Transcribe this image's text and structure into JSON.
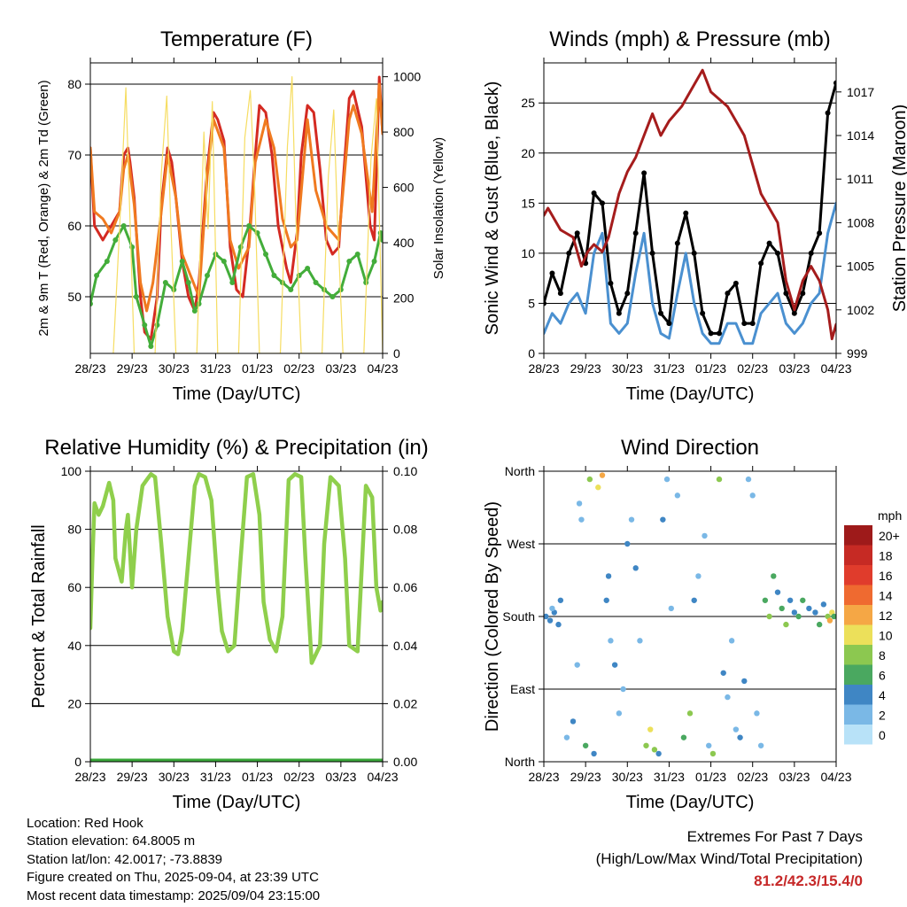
{
  "panels": [
    {
      "id": "temperature",
      "title": "Temperature (F)",
      "xlabel": "Time (Day/UTC)",
      "ylabel_left": "2m & 9m T (Red, Orange) & 2m Td (Green)",
      "ylabel_right": "Solar Insolation (Yellow)"
    },
    {
      "id": "winds",
      "title": "Winds (mph) & Pressure (mb)",
      "xlabel": "Time (Day/UTC)",
      "ylabel_left": "Sonic Wind & Gust (Blue, Black)",
      "ylabel_right": "Station Pressure (Maroon)"
    },
    {
      "id": "humidity",
      "title": "Relative Humidity (%) & Precipitation (in)",
      "xlabel": "Time (Day/UTC)",
      "ylabel_left": "Percent & Total Rainfall",
      "ylabel_right": ""
    },
    {
      "id": "direction",
      "title": "Wind Direction",
      "xlabel": "Time (Day/UTC)",
      "ylabel_left": "Direction (Colored By Speed)",
      "ylabel_right": ""
    }
  ],
  "colorbar": {
    "unit": "mph",
    "labels": [
      "20+",
      "18",
      "16",
      "14",
      "12",
      "10",
      "8",
      "6",
      "4",
      "2",
      "0"
    ],
    "colors": [
      "#9e1a1a",
      "#c62a24",
      "#e03c2c",
      "#ef6a30",
      "#f5a745",
      "#ece05a",
      "#8cc850",
      "#4aa860",
      "#3f86c4",
      "#7ab8e6",
      "#b8e2f8"
    ]
  },
  "info": {
    "location": "Location: Red Hook",
    "elevation": "Station elevation: 64.8005 m",
    "latlon": "Station lat/lon: 42.0017; -73.8839",
    "created": "Figure created on Thu, 2025-09-04, at 23:39 UTC",
    "latest": "Most recent data timestamp: 2025/09/04 23:15:00"
  },
  "extremes": {
    "line1": "Extremes For Past 7 Days",
    "line2": "(High/Low/Max Wind/Total Precipitation)",
    "values": "81.2/42.3/15.4/0"
  },
  "chart_data": [
    {
      "type": "line",
      "title": "Temperature (F)",
      "xlabel": "Time (Day/UTC)",
      "ylabel": "2m & 9m T (Red, Orange) & 2m Td (Green)",
      "y2label": "Solar Insolation (Yellow)",
      "x_ticks": [
        "28/23",
        "29/23",
        "30/23",
        "31/23",
        "01/23",
        "02/23",
        "03/23",
        "04/23"
      ],
      "xlim": [
        0,
        7
      ],
      "ylim": [
        42,
        83
      ],
      "y_ticks": [
        50,
        60,
        70,
        80
      ],
      "y2lim": [
        0,
        1050
      ],
      "y2_ticks": [
        0,
        200,
        400,
        600,
        800,
        1000
      ],
      "grid": true,
      "series": [
        {
          "name": "2m T",
          "color": "#d42a22",
          "axis": "left",
          "x": [
            0,
            0.1,
            0.3,
            0.5,
            0.7,
            0.8,
            0.9,
            0.95,
            1.05,
            1.2,
            1.3,
            1.45,
            1.6,
            1.7,
            1.85,
            1.95,
            2.05,
            2.2,
            2.35,
            2.5,
            2.6,
            2.8,
            2.95,
            3.05,
            3.2,
            3.35,
            3.5,
            3.65,
            3.8,
            3.95,
            4.05,
            4.2,
            4.35,
            4.5,
            4.7,
            4.8,
            4.95,
            5.05,
            5.2,
            5.35,
            5.5,
            5.65,
            5.8,
            5.95,
            6.05,
            6.2,
            6.3,
            6.5,
            6.7,
            6.8,
            6.92,
            7.0
          ],
          "y": [
            71,
            60,
            58,
            60,
            62,
            70,
            71,
            69,
            64,
            50,
            45,
            44,
            50,
            63,
            71,
            69,
            64,
            55,
            50,
            48,
            52,
            68,
            76,
            75,
            72,
            57,
            51,
            50,
            58,
            70,
            77,
            76,
            70,
            60,
            54,
            52,
            59,
            70,
            77,
            76,
            68,
            58,
            56,
            57,
            66,
            78,
            79,
            74,
            60,
            58,
            81,
            73
          ]
        },
        {
          "name": "9m T",
          "color": "#f07a20",
          "axis": "left",
          "x": [
            0,
            0.1,
            0.3,
            0.5,
            0.7,
            0.8,
            0.9,
            1.05,
            1.2,
            1.35,
            1.5,
            1.7,
            1.85,
            2.05,
            2.2,
            2.4,
            2.6,
            2.8,
            2.95,
            3.2,
            3.35,
            3.55,
            3.8,
            3.95,
            4.2,
            4.4,
            4.6,
            4.8,
            4.95,
            5.2,
            5.4,
            5.65,
            5.95,
            6.2,
            6.3,
            6.5,
            6.75,
            6.92,
            7.0
          ],
          "y": [
            71,
            62,
            61,
            59,
            62,
            68,
            70,
            63,
            52,
            48,
            52,
            62,
            70,
            64,
            56,
            53,
            50,
            67,
            75,
            71,
            58,
            54,
            57,
            69,
            75,
            71,
            61,
            57,
            58,
            75,
            65,
            60,
            58,
            75,
            77,
            73,
            62,
            80,
            73
          ]
        },
        {
          "name": "2m Td",
          "color": "#43ad3a",
          "axis": "left",
          "x": [
            0,
            0.15,
            0.4,
            0.6,
            0.8,
            1.0,
            1.1,
            1.3,
            1.45,
            1.6,
            1.8,
            2.0,
            2.2,
            2.35,
            2.5,
            2.6,
            2.8,
            3.0,
            3.2,
            3.4,
            3.6,
            3.8,
            4.0,
            4.2,
            4.4,
            4.6,
            4.8,
            5.0,
            5.2,
            5.4,
            5.6,
            5.8,
            6.0,
            6.2,
            6.4,
            6.6,
            6.8,
            6.95,
            7.0
          ],
          "y": [
            49,
            53,
            55,
            58,
            60,
            57,
            50,
            46,
            43,
            46,
            52,
            51,
            55,
            52,
            48,
            49,
            53,
            56,
            55,
            52,
            57,
            60,
            59,
            56,
            53,
            52,
            51,
            53,
            54,
            52,
            51,
            50,
            51,
            55,
            56,
            52,
            55,
            59,
            58
          ]
        },
        {
          "name": "Solar Insolation",
          "color": "#f6dd62",
          "axis": "right",
          "x": [
            0.55,
            0.7,
            0.85,
            0.95,
            1.05,
            1.55,
            1.7,
            1.83,
            1.92,
            2.05,
            2.55,
            2.72,
            2.82,
            2.92,
            3.05,
            3.55,
            3.7,
            3.83,
            3.93,
            4.05,
            4.55,
            4.72,
            4.83,
            4.92,
            5.05,
            5.55,
            5.7,
            5.83,
            5.92,
            6.05,
            6.55,
            6.72,
            6.85,
            6.92,
            7.0
          ],
          "y": [
            0,
            450,
            960,
            480,
            0,
            0,
            650,
            930,
            500,
            0,
            0,
            800,
            450,
            910,
            0,
            0,
            780,
            950,
            620,
            0,
            0,
            750,
            1000,
            500,
            0,
            0,
            640,
            880,
            480,
            0,
            0,
            700,
            920,
            500,
            0
          ]
        }
      ]
    },
    {
      "type": "line",
      "title": "Winds (mph) & Pressure (mb)",
      "xlabel": "Time (Day/UTC)",
      "ylabel": "Sonic Wind & Gust (Blue, Black)",
      "y2label": "Station Pressure (Maroon)",
      "x_ticks": [
        "28/23",
        "29/23",
        "30/23",
        "31/23",
        "01/23",
        "02/23",
        "03/23",
        "04/23"
      ],
      "xlim": [
        0,
        7
      ],
      "ylim": [
        0,
        29
      ],
      "y_ticks": [
        0,
        5,
        10,
        15,
        20,
        25
      ],
      "y2lim": [
        999,
        1019
      ],
      "y2_ticks": [
        999,
        1002,
        1005,
        1008,
        1011,
        1014,
        1017
      ],
      "grid": true,
      "series": [
        {
          "name": "Sonic Wind",
          "color": "#4a90d0",
          "axis": "left",
          "x": [
            0,
            0.2,
            0.4,
            0.6,
            0.8,
            1.0,
            1.2,
            1.4,
            1.6,
            1.8,
            2.0,
            2.2,
            2.4,
            2.6,
            2.8,
            3.0,
            3.2,
            3.4,
            3.6,
            3.8,
            4.0,
            4.2,
            4.4,
            4.6,
            4.8,
            5.0,
            5.2,
            5.4,
            5.6,
            5.8,
            6.0,
            6.2,
            6.4,
            6.6,
            6.8,
            7.0
          ],
          "y": [
            2,
            4,
            3,
            5,
            6,
            4,
            10,
            12,
            3,
            2,
            3,
            8,
            12,
            5,
            2,
            1.5,
            6,
            10,
            5,
            2,
            1,
            1,
            3,
            3,
            1,
            1,
            4,
            5,
            6,
            3,
            2,
            3,
            5,
            6,
            12,
            15
          ]
        },
        {
          "name": "Gust",
          "color": "#000000",
          "axis": "left",
          "x": [
            0,
            0.2,
            0.4,
            0.6,
            0.8,
            1.0,
            1.2,
            1.4,
            1.6,
            1.8,
            2.0,
            2.2,
            2.4,
            2.6,
            2.8,
            3.0,
            3.2,
            3.4,
            3.6,
            3.8,
            4.0,
            4.2,
            4.4,
            4.6,
            4.8,
            5.0,
            5.2,
            5.4,
            5.6,
            5.8,
            6.0,
            6.2,
            6.4,
            6.6,
            6.8,
            7.0
          ],
          "y": [
            5,
            8,
            6,
            10,
            12,
            9,
            16,
            15,
            7,
            4,
            6,
            12,
            18,
            10,
            4,
            3,
            11,
            14,
            10,
            4,
            2,
            2,
            6,
            7,
            3,
            3,
            9,
            11,
            10,
            6,
            4,
            6,
            10,
            12,
            24,
            27
          ]
        },
        {
          "name": "Station Pressure",
          "color": "#a51c1c",
          "axis": "right",
          "x": [
            0,
            0.1,
            0.4,
            0.7,
            0.9,
            1.05,
            1.2,
            1.4,
            1.55,
            1.8,
            2.0,
            2.2,
            2.4,
            2.6,
            2.8,
            3.0,
            3.3,
            3.6,
            3.8,
            4.0,
            4.2,
            4.4,
            4.6,
            4.8,
            5.0,
            5.2,
            5.4,
            5.6,
            5.8,
            6.0,
            6.2,
            6.4,
            6.6,
            6.8,
            6.9,
            7.0
          ],
          "y": [
            1008.5,
            1009,
            1007.5,
            1007,
            1005,
            1006,
            1006.5,
            1006,
            1007,
            1010,
            1011.5,
            1012.5,
            1014,
            1015.5,
            1014,
            1015,
            1016,
            1017.5,
            1018.5,
            1017,
            1016.5,
            1016,
            1015,
            1014,
            1012,
            1010,
            1009,
            1008,
            1004,
            1002,
            1004,
            1005,
            1004,
            1002,
            1000,
            1001
          ]
        }
      ]
    },
    {
      "type": "line",
      "title": "Relative Humidity (%) & Precipitation (in)",
      "xlabel": "Time (Day/UTC)",
      "ylabel": "Percent & Total Rainfall",
      "x_ticks": [
        "28/23",
        "29/23",
        "30/23",
        "31/23",
        "01/23",
        "02/23",
        "03/23",
        "04/23"
      ],
      "xlim": [
        0,
        7
      ],
      "ylim": [
        0,
        100
      ],
      "y_ticks": [
        0,
        20,
        40,
        60,
        80,
        100
      ],
      "y2lim": [
        0,
        0.1
      ],
      "y2_ticks": [
        0.0,
        0.02,
        0.04,
        0.06,
        0.08,
        0.1
      ],
      "grid": true,
      "series": [
        {
          "name": "Relative Humidity",
          "color": "#8fcf4c",
          "axis": "left",
          "x": [
            0,
            0.05,
            0.1,
            0.2,
            0.3,
            0.45,
            0.55,
            0.6,
            0.75,
            0.85,
            0.9,
            1.0,
            1.1,
            1.25,
            1.35,
            1.45,
            1.55,
            1.7,
            1.85,
            2.0,
            2.1,
            2.2,
            2.35,
            2.5,
            2.6,
            2.75,
            2.9,
            3.05,
            3.15,
            3.3,
            3.45,
            3.6,
            3.75,
            3.9,
            4.05,
            4.15,
            4.3,
            4.45,
            4.6,
            4.75,
            4.9,
            5.05,
            5.15,
            5.3,
            5.5,
            5.6,
            5.75,
            5.95,
            6.1,
            6.2,
            6.4,
            6.6,
            6.75,
            6.85,
            6.95,
            7.0
          ],
          "y": [
            46,
            70,
            89,
            85,
            88,
            96,
            90,
            70,
            62,
            80,
            85,
            60,
            80,
            95,
            97,
            99,
            98,
            75,
            50,
            38,
            37,
            45,
            70,
            95,
            99,
            98,
            90,
            60,
            45,
            38,
            40,
            70,
            98,
            99,
            85,
            55,
            42,
            38,
            50,
            97,
            99,
            98,
            70,
            34,
            40,
            75,
            98,
            95,
            70,
            40,
            38,
            95,
            91,
            60,
            52,
            55
          ]
        },
        {
          "name": "Total Rainfall",
          "color": "#3aa83a",
          "axis": "right",
          "x": [
            0,
            7
          ],
          "y": [
            0,
            0
          ]
        }
      ]
    },
    {
      "type": "scatter",
      "title": "Wind Direction",
      "xlabel": "Time (Day/UTC)",
      "ylabel": "Direction (Colored By Speed)",
      "x_ticks": [
        "28/23",
        "29/23",
        "30/23",
        "31/23",
        "01/23",
        "02/23",
        "03/23",
        "04/23"
      ],
      "xlim": [
        0,
        7
      ],
      "ylim": [
        0,
        360
      ],
      "y_tick_values": [
        0,
        90,
        180,
        270,
        360
      ],
      "y_ticks": [
        "North",
        "East",
        "South",
        "West",
        "North"
      ],
      "grid": true,
      "color_by": "speed (mph)",
      "x": [
        0.05,
        0.15,
        0.25,
        0.35,
        0.2,
        0.4,
        0.55,
        0.7,
        0.8,
        0.9,
        0.85,
        1.0,
        1.1,
        1.2,
        1.3,
        1.4,
        1.5,
        1.55,
        1.6,
        1.7,
        1.8,
        1.9,
        2.0,
        2.1,
        2.2,
        2.3,
        2.45,
        2.55,
        2.65,
        2.75,
        2.85,
        2.95,
        3.05,
        3.2,
        3.35,
        3.5,
        3.6,
        3.7,
        3.85,
        3.95,
        4.05,
        4.2,
        4.3,
        4.4,
        4.5,
        4.6,
        4.7,
        4.8,
        4.9,
        5.0,
        5.1,
        5.2,
        5.3,
        5.4,
        5.5,
        5.6,
        5.7,
        5.8,
        5.9,
        6.0,
        6.1,
        6.2,
        6.35,
        6.5,
        6.6,
        6.7,
        6.8,
        6.85,
        6.9,
        6.95
      ],
      "y": [
        180,
        175,
        185,
        170,
        190,
        200,
        30,
        50,
        120,
        300,
        320,
        20,
        350,
        10,
        340,
        355,
        200,
        230,
        150,
        120,
        60,
        90,
        270,
        300,
        240,
        150,
        20,
        40,
        15,
        10,
        300,
        350,
        190,
        330,
        30,
        60,
        200,
        230,
        280,
        20,
        10,
        350,
        110,
        80,
        150,
        40,
        30,
        100,
        350,
        330,
        60,
        20,
        200,
        180,
        230,
        210,
        190,
        170,
        200,
        185,
        180,
        200,
        190,
        185,
        170,
        195,
        180,
        175,
        185,
        180
      ],
      "speed": [
        4,
        4,
        3,
        4,
        2,
        3,
        2,
        4,
        2,
        1,
        2,
        6,
        8,
        3,
        10,
        12,
        4,
        3,
        2,
        4,
        2,
        1,
        3,
        2,
        3,
        1,
        7,
        10,
        8,
        4,
        4,
        2,
        1,
        1,
        6,
        8,
        3,
        2,
        1,
        2,
        7,
        8,
        4,
        1,
        1,
        2,
        4,
        3,
        2,
        1,
        2,
        2,
        5,
        7,
        6,
        4,
        5,
        8,
        4,
        3,
        5,
        6,
        4,
        4,
        5,
        4,
        8,
        12,
        10,
        6
      ]
    }
  ]
}
